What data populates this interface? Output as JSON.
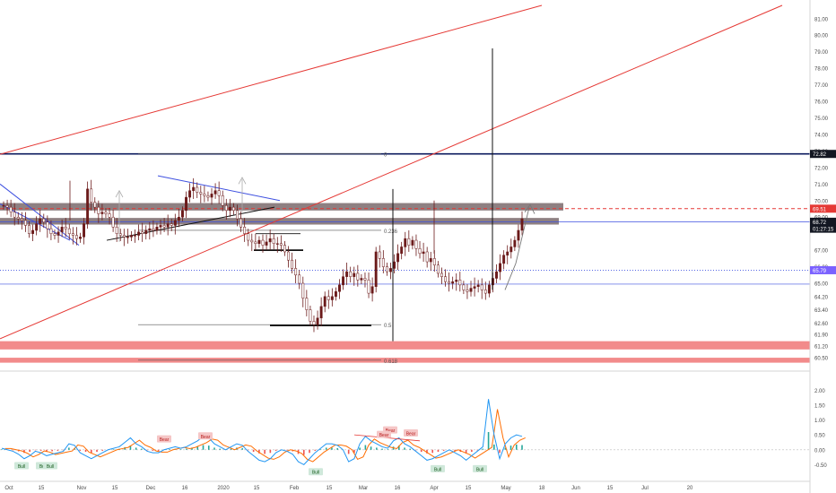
{
  "colors": {
    "up": "#26a69a",
    "down": "#ef5350",
    "candle": "#6b1a1a",
    "trendline_red": "#e53935",
    "channel_blue": "#3f51e0",
    "zone_gray": "#7a6a6c",
    "zone_red": "#f28b8b",
    "macd_blue": "#2196f3",
    "macd_orange": "#ff6d00",
    "price_tag_red": "#e53935",
    "price_tag_purple": "#7b61ff",
    "price_tag_black": "#131722",
    "axis_text": "#4a4a4a"
  },
  "chart_data": {
    "type": "candlestick",
    "price_axis": {
      "ylim": [
        59.8,
        81.8
      ],
      "ticks": [
        "81.00",
        "80.00",
        "79.00",
        "78.00",
        "77.00",
        "76.00",
        "75.00",
        "74.00",
        "73.00",
        "72.00",
        "71.00",
        "70.00",
        "69.00",
        "67.00",
        "66.00",
        "65.00",
        "64.20",
        "63.40",
        "62.60",
        "61.90",
        "61.20",
        "60.50"
      ]
    },
    "price_tags": [
      {
        "label": "72.82",
        "value": 72.82,
        "style": "black"
      },
      {
        "label": "69.51",
        "value": 69.51,
        "style": "red"
      },
      {
        "label": "68.72",
        "value": 68.72,
        "style": "black"
      },
      {
        "label": "01:27:15",
        "value": 68.3,
        "style": "black"
      },
      {
        "label": "65.79",
        "value": 65.79,
        "style": "purple"
      }
    ],
    "time_axis": {
      "labels": [
        "Oct",
        "15",
        "Nov",
        "15",
        "Dec",
        "16",
        "2020",
        "15",
        "Feb",
        "15",
        "Mar",
        "16",
        "Apr",
        "15",
        "May",
        "18",
        "Jun",
        "15",
        "Jul",
        "20"
      ]
    },
    "fib_levels": [
      {
        "label": "0",
        "value": 72.82
      },
      {
        "label": "0.236",
        "value": 68.2
      },
      {
        "label": "0.5",
        "value": 62.5
      },
      {
        "label": "0.618",
        "value": 60.35
      }
    ],
    "close_series": [
      69.7,
      69.6,
      69.3,
      69.0,
      68.9,
      68.8,
      68.5,
      68.0,
      68.2,
      68.6,
      68.9,
      68.7,
      68.3,
      68.0,
      67.9,
      68.1,
      68.4,
      68.3,
      68.0,
      67.9,
      67.7,
      67.8,
      68.6,
      70.7,
      69.9,
      69.6,
      69.2,
      69.3,
      69.2,
      69.0,
      68.4,
      68.0,
      67.9,
      67.8,
      67.8,
      67.9,
      67.9,
      68.1,
      68.0,
      68.2,
      68.3,
      68.2,
      68.4,
      68.5,
      68.4,
      68.6,
      68.5,
      68.8,
      69.0,
      69.4,
      70.2,
      70.6,
      70.8,
      70.5,
      70.4,
      70.3,
      70.2,
      70.4,
      70.6,
      70.3,
      69.7,
      69.4,
      69.6,
      69.4,
      68.9,
      68.4,
      68.0,
      67.6,
      67.5,
      67.4,
      67.6,
      67.3,
      67.5,
      67.7,
      67.4,
      67.4,
      67.3,
      66.9,
      66.4,
      65.9,
      65.5,
      65.0,
      64.1,
      63.4,
      62.7,
      62.5,
      62.9,
      63.6,
      64.2,
      64.0,
      64.2,
      64.5,
      64.9,
      65.4,
      65.7,
      65.4,
      65.6,
      65.2,
      65.3,
      65.2,
      64.4,
      64.8,
      66.9,
      66.5,
      66.0,
      65.7,
      65.9,
      66.3,
      66.8,
      67.2,
      67.7,
      67.3,
      67.6,
      67.1,
      66.8,
      66.9,
      66.3,
      66.5,
      66.1,
      65.6,
      65.4,
      65.1,
      65.0,
      65.1,
      65.2,
      64.9,
      64.6,
      64.5,
      64.7,
      64.8,
      64.9,
      64.6,
      64.4,
      64.9,
      65.3,
      65.7,
      66.2,
      66.7,
      66.9,
      67.2,
      67.6,
      68.2,
      68.9
    ],
    "lows": [
      62.5,
      62.8,
      63.1
    ],
    "macd": {
      "ylim": [
        -1.0,
        2.4
      ],
      "ticks": [
        "2.00",
        "1.50",
        "1.00",
        "0.50",
        "0.00",
        "-0.50"
      ],
      "labels": [
        {
          "text": "Bull",
          "kind": "bull"
        },
        {
          "text": "Bull",
          "kind": "bull"
        },
        {
          "text": "Bull",
          "kind": "bull"
        },
        {
          "text": "Bear",
          "kind": "bear"
        },
        {
          "text": "Bear",
          "kind": "bear"
        },
        {
          "text": "Bull",
          "kind": "bull"
        },
        {
          "text": "Bear",
          "kind": "bear"
        },
        {
          "text": "Bear",
          "kind": "bear"
        },
        {
          "text": "Bear",
          "kind": "bear"
        },
        {
          "text": "Bull",
          "kind": "bull"
        },
        {
          "text": "Bull",
          "kind": "bull"
        }
      ],
      "line1": [
        0.05,
        0.0,
        -0.05,
        -0.15,
        -0.3,
        -0.2,
        -0.05,
        -0.1,
        -0.2,
        -0.15,
        -0.1,
        -0.05,
        0.2,
        0.15,
        -0.1,
        -0.2,
        -0.3,
        -0.2,
        -0.1,
        0.0,
        0.05,
        0.1,
        0.25,
        0.4,
        0.2,
        0.1,
        -0.05,
        -0.1,
        -0.1,
        0.0,
        0.05,
        0.1,
        0.05,
        0.1,
        0.2,
        0.3,
        0.45,
        0.4,
        0.2,
        0.1,
        0.0,
        0.1,
        0.2,
        0.15,
        -0.05,
        -0.2,
        -0.35,
        -0.4,
        -0.3,
        -0.1,
        0.0,
        -0.05,
        -0.15,
        -0.4,
        -0.5,
        -0.3,
        -0.1,
        0.05,
        0.2,
        0.2,
        0.15,
        0.0,
        -0.4,
        -0.3,
        0.2,
        0.45,
        0.3,
        0.2,
        0.1,
        0.05,
        0.3,
        0.4,
        0.2,
        0.1,
        -0.05,
        -0.2,
        -0.35,
        -0.3,
        -0.2,
        -0.1,
        0.0,
        -0.1,
        -0.2,
        -0.35,
        -0.2,
        -0.05,
        0.1,
        1.7,
        0.5,
        -0.3,
        0.2,
        0.4,
        0.5,
        0.45
      ]
    }
  }
}
